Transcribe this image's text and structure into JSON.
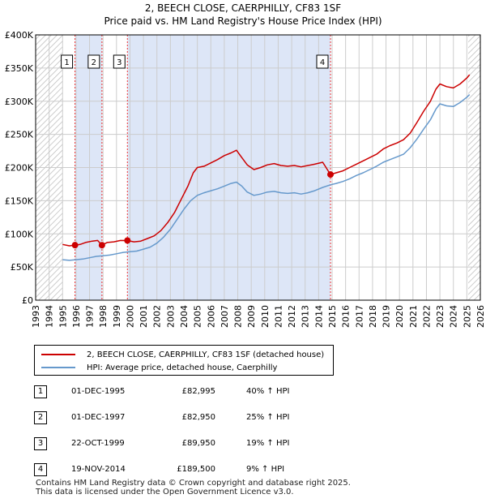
{
  "title": {
    "line1": "2, BEECH CLOSE, CAERPHILLY, CF83 1SF",
    "line2": "Price paid vs. HM Land Registry's House Price Index (HPI)"
  },
  "colors": {
    "price_line": "#cc0000",
    "hpi_line": "#6699cc",
    "shade": "#dde6f7",
    "grid": "#cccccc",
    "marker_line": "#ee3333"
  },
  "chart_data": {
    "type": "line",
    "title": "2, BEECH CLOSE, CAERPHILLY, CF83 1SF — Price paid vs. HM Land Registry's House Price Index (HPI)",
    "xlabel": "",
    "ylabel": "",
    "xlim": [
      1993,
      2026
    ],
    "ylim": [
      0,
      400000
    ],
    "grid": true,
    "x_ticks": [
      "1993",
      "1994",
      "1995",
      "1996",
      "1997",
      "1998",
      "1999",
      "2000",
      "2001",
      "2002",
      "2003",
      "2004",
      "2005",
      "2006",
      "2007",
      "2008",
      "2009",
      "2010",
      "2011",
      "2012",
      "2013",
      "2014",
      "2015",
      "2016",
      "2017",
      "2018",
      "2019",
      "2020",
      "2021",
      "2022",
      "2023",
      "2024",
      "2025",
      "2026"
    ],
    "y_ticks": [
      {
        "value": 0,
        "label": "£0"
      },
      {
        "value": 50000,
        "label": "£50K"
      },
      {
        "value": 100000,
        "label": "£100K"
      },
      {
        "value": 150000,
        "label": "£150K"
      },
      {
        "value": 200000,
        "label": "£200K"
      },
      {
        "value": 250000,
        "label": "£250K"
      },
      {
        "value": 300000,
        "label": "£300K"
      },
      {
        "value": 350000,
        "label": "£350K"
      },
      {
        "value": 400000,
        "label": "£400K"
      }
    ],
    "shaded_ranges": [
      [
        1995.92,
        1997.92
      ],
      [
        1999.81,
        2014.88
      ]
    ],
    "hatched_ranges": [
      [
        1993,
        1995
      ],
      [
        2025.1,
        2026
      ]
    ],
    "series": [
      {
        "name": "2, BEECH CLOSE, CAERPHILLY, CF83 1SF (detached house)",
        "color": "#cc0000",
        "points": [
          [
            1995.0,
            84000
          ],
          [
            1995.5,
            82000
          ],
          [
            1995.92,
            82995
          ],
          [
            1996.3,
            84000
          ],
          [
            1996.7,
            87000
          ],
          [
            1997.2,
            89000
          ],
          [
            1997.6,
            90000
          ],
          [
            1997.92,
            82950
          ],
          [
            1998.3,
            87000
          ],
          [
            1998.8,
            88000
          ],
          [
            1999.3,
            90000
          ],
          [
            1999.81,
            89950
          ],
          [
            2000.3,
            88000
          ],
          [
            2000.8,
            89000
          ],
          [
            2001.3,
            93000
          ],
          [
            2001.8,
            97000
          ],
          [
            2002.3,
            105000
          ],
          [
            2002.8,
            117000
          ],
          [
            2003.3,
            132000
          ],
          [
            2003.8,
            152000
          ],
          [
            2004.3,
            172000
          ],
          [
            2004.7,
            192000
          ],
          [
            2005.0,
            200000
          ],
          [
            2005.5,
            202000
          ],
          [
            2006.0,
            207000
          ],
          [
            2006.5,
            212000
          ],
          [
            2007.0,
            218000
          ],
          [
            2007.5,
            222000
          ],
          [
            2007.9,
            226000
          ],
          [
            2008.3,
            215000
          ],
          [
            2008.7,
            204000
          ],
          [
            2009.2,
            197000
          ],
          [
            2009.7,
            200000
          ],
          [
            2010.2,
            204000
          ],
          [
            2010.7,
            206000
          ],
          [
            2011.2,
            203000
          ],
          [
            2011.7,
            202000
          ],
          [
            2012.2,
            203000
          ],
          [
            2012.7,
            201000
          ],
          [
            2013.2,
            203000
          ],
          [
            2013.7,
            205000
          ],
          [
            2014.3,
            208000
          ],
          [
            2014.88,
            189500
          ],
          [
            2015.3,
            192000
          ],
          [
            2015.8,
            195000
          ],
          [
            2016.3,
            200000
          ],
          [
            2016.8,
            205000
          ],
          [
            2017.3,
            210000
          ],
          [
            2017.8,
            215000
          ],
          [
            2018.3,
            220000
          ],
          [
            2018.8,
            228000
          ],
          [
            2019.3,
            233000
          ],
          [
            2019.8,
            237000
          ],
          [
            2020.3,
            242000
          ],
          [
            2020.8,
            252000
          ],
          [
            2021.3,
            268000
          ],
          [
            2021.8,
            285000
          ],
          [
            2022.3,
            300000
          ],
          [
            2022.7,
            318000
          ],
          [
            2023.0,
            326000
          ],
          [
            2023.5,
            322000
          ],
          [
            2024.0,
            320000
          ],
          [
            2024.5,
            326000
          ],
          [
            2025.0,
            335000
          ],
          [
            2025.2,
            340000
          ]
        ]
      },
      {
        "name": "HPI: Average price, detached house, Caerphilly",
        "color": "#6699cc",
        "points": [
          [
            1995.0,
            61000
          ],
          [
            1995.5,
            60000
          ],
          [
            1996.0,
            61000
          ],
          [
            1996.5,
            62000
          ],
          [
            1997.0,
            64000
          ],
          [
            1997.5,
            66000
          ],
          [
            1998.0,
            67000
          ],
          [
            1998.5,
            68000
          ],
          [
            1999.0,
            70000
          ],
          [
            1999.5,
            72000
          ],
          [
            2000.0,
            73000
          ],
          [
            2000.5,
            74000
          ],
          [
            2001.0,
            77000
          ],
          [
            2001.5,
            80000
          ],
          [
            2002.0,
            86000
          ],
          [
            2002.5,
            95000
          ],
          [
            2003.0,
            107000
          ],
          [
            2003.5,
            122000
          ],
          [
            2004.0,
            137000
          ],
          [
            2004.5,
            150000
          ],
          [
            2005.0,
            158000
          ],
          [
            2005.5,
            162000
          ],
          [
            2006.0,
            165000
          ],
          [
            2006.5,
            168000
          ],
          [
            2007.0,
            172000
          ],
          [
            2007.5,
            176000
          ],
          [
            2007.9,
            178000
          ],
          [
            2008.3,
            172000
          ],
          [
            2008.7,
            163000
          ],
          [
            2009.2,
            158000
          ],
          [
            2009.7,
            160000
          ],
          [
            2010.2,
            163000
          ],
          [
            2010.7,
            164000
          ],
          [
            2011.2,
            162000
          ],
          [
            2011.7,
            161000
          ],
          [
            2012.2,
            162000
          ],
          [
            2012.7,
            160000
          ],
          [
            2013.2,
            162000
          ],
          [
            2013.7,
            165000
          ],
          [
            2014.3,
            170000
          ],
          [
            2014.88,
            174000
          ],
          [
            2015.3,
            176000
          ],
          [
            2015.8,
            179000
          ],
          [
            2016.3,
            183000
          ],
          [
            2016.8,
            188000
          ],
          [
            2017.3,
            192000
          ],
          [
            2017.8,
            197000
          ],
          [
            2018.3,
            202000
          ],
          [
            2018.8,
            208000
          ],
          [
            2019.3,
            212000
          ],
          [
            2019.8,
            216000
          ],
          [
            2020.3,
            220000
          ],
          [
            2020.8,
            230000
          ],
          [
            2021.3,
            243000
          ],
          [
            2021.8,
            258000
          ],
          [
            2022.3,
            272000
          ],
          [
            2022.7,
            288000
          ],
          [
            2023.0,
            296000
          ],
          [
            2023.5,
            293000
          ],
          [
            2024.0,
            292000
          ],
          [
            2024.5,
            298000
          ],
          [
            2025.0,
            306000
          ],
          [
            2025.2,
            310000
          ]
        ]
      }
    ],
    "sale_points": [
      {
        "label": "1",
        "x": 1995.92,
        "y": 82995
      },
      {
        "label": "2",
        "x": 1997.92,
        "y": 82950
      },
      {
        "label": "3",
        "x": 1999.81,
        "y": 89950
      },
      {
        "label": "4",
        "x": 2014.88,
        "y": 189500
      }
    ]
  },
  "legend": {
    "items": [
      {
        "label": "2, BEECH CLOSE, CAERPHILLY, CF83 1SF (detached house)",
        "color": "#cc0000"
      },
      {
        "label": "HPI: Average price, detached house, Caerphilly",
        "color": "#6699cc"
      }
    ]
  },
  "sales_table": [
    {
      "marker": "1",
      "date": "01-DEC-1995",
      "price": "£82,995",
      "hpi_diff": "40% ↑ HPI"
    },
    {
      "marker": "2",
      "date": "01-DEC-1997",
      "price": "£82,950",
      "hpi_diff": "25% ↑ HPI"
    },
    {
      "marker": "3",
      "date": "22-OCT-1999",
      "price": "£89,950",
      "hpi_diff": "19% ↑ HPI"
    },
    {
      "marker": "4",
      "date": "19-NOV-2014",
      "price": "£189,500",
      "hpi_diff": "9% ↑ HPI"
    }
  ],
  "footer": {
    "line1": "Contains HM Land Registry data © Crown copyright and database right 2025.",
    "line2": "This data is licensed under the Open Government Licence v3.0."
  }
}
